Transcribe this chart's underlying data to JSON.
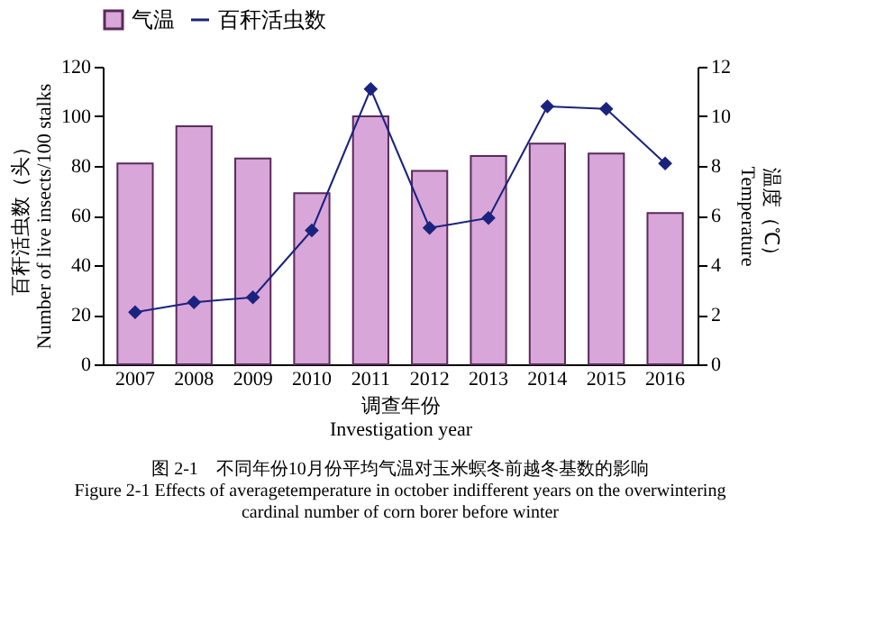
{
  "chart_data": {
    "type": "bar",
    "categories": [
      "2007",
      "2008",
      "2009",
      "2010",
      "2011",
      "2012",
      "2013",
      "2014",
      "2015",
      "2016"
    ],
    "series": [
      {
        "name": "气温",
        "color": "#d9a6d9",
        "values": [
          81,
          96,
          83,
          69,
          100,
          78,
          84,
          89,
          85,
          61
        ]
      },
      {
        "name": "百秆活虫数",
        "type": "line",
        "axis": "y2",
        "color": "#1a237e",
        "values": [
          2.1,
          2.5,
          2.7,
          5.4,
          11.1,
          5.5,
          5.9,
          10.4,
          10.3,
          8.1
        ]
      }
    ],
    "xlabel": "调查年份\nInvestigation year",
    "ylabel": "百秆活虫数（头）\nNumber of live insects/100 stalks",
    "y2label": "温度（℃）\nTemperature",
    "ylim": [
      0,
      120
    ],
    "yticks": [
      0,
      20,
      40,
      60,
      80,
      100,
      120
    ],
    "y2lim": [
      0,
      12
    ],
    "y2ticks": [
      0,
      2,
      4,
      6,
      8,
      10,
      12
    ],
    "annotations": [
      "图 2-1　不同年份10月份平均气温对玉米螟冬前越冬基数的影响",
      "Figure 2-1   Effects of averagetemperature in october indifferent years on the overwintering cardinal number of corn borer before winter"
    ],
    "legend": "top",
    "marker": "diamond",
    "line_style": "solid",
    "grid": false
  }
}
